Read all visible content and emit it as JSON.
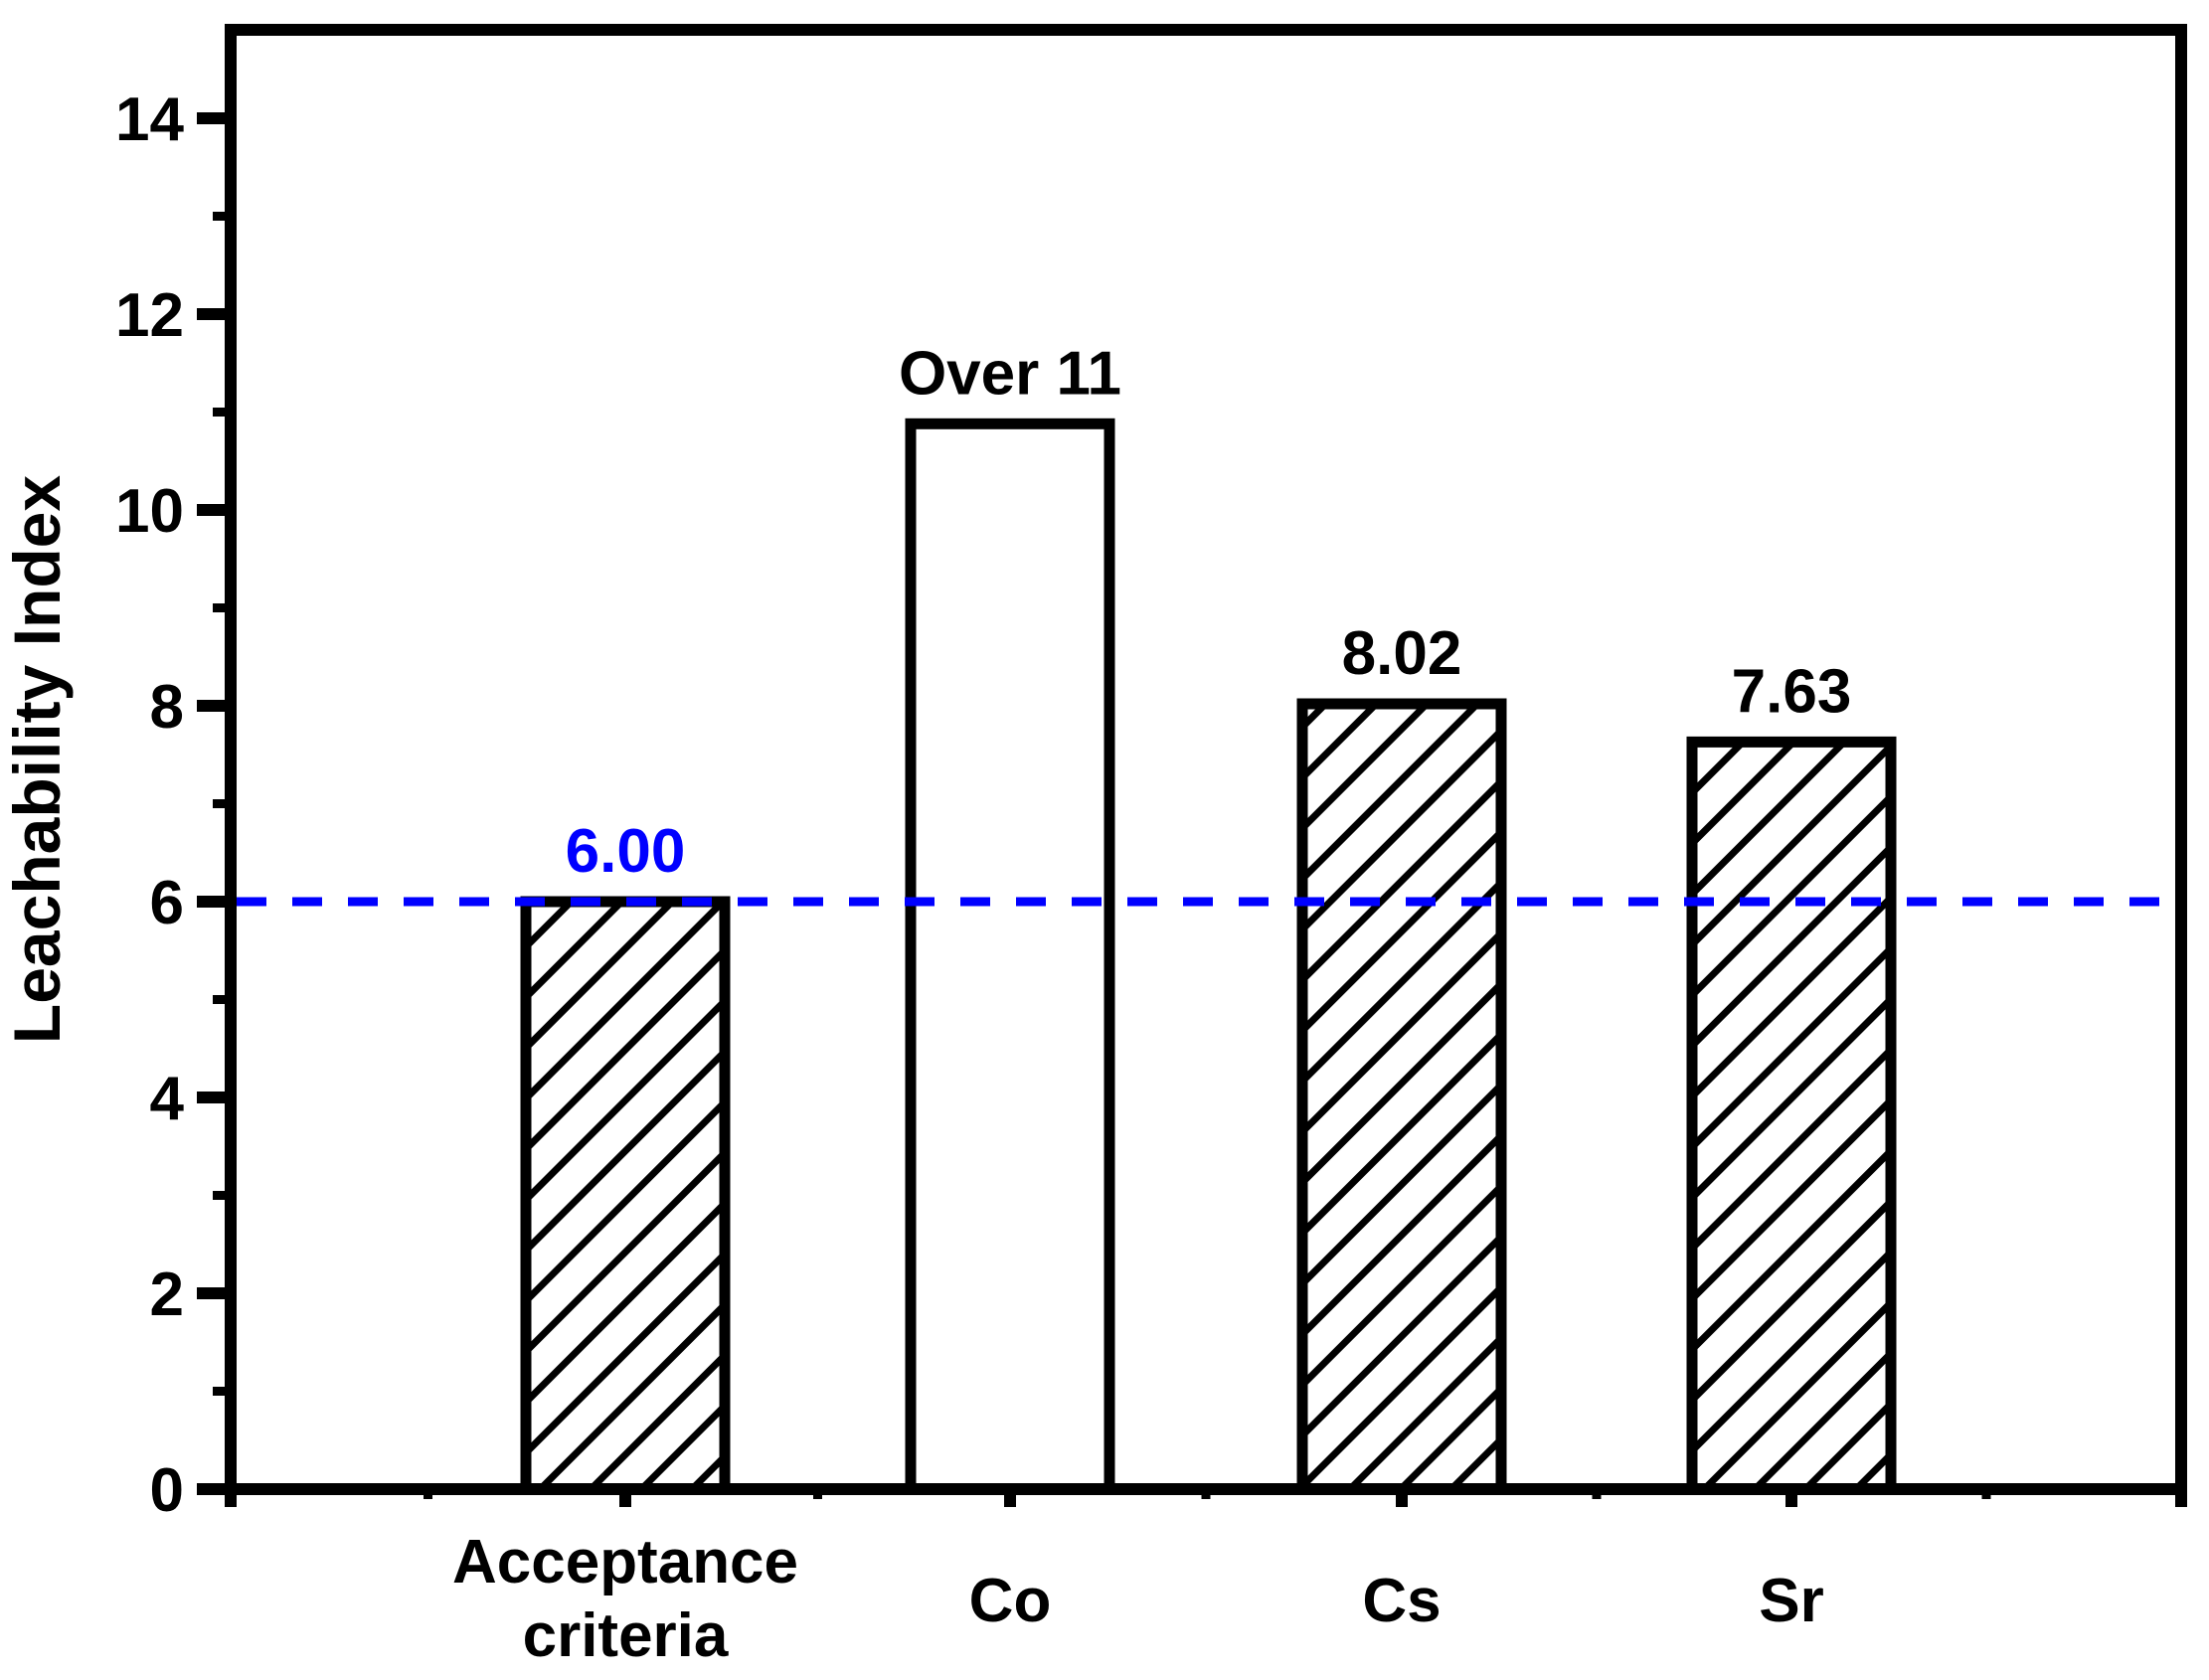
{
  "chart_data": {
    "type": "bar",
    "title": "",
    "xlabel": "",
    "ylabel": "Leachability Index",
    "ylim": [
      0,
      14.9
    ],
    "grid": false,
    "legend": false,
    "y_major_ticks": [
      0,
      2,
      4,
      6,
      8,
      10,
      12,
      14
    ],
    "y_major_tick_labels": [
      "0",
      "2",
      "4",
      "6",
      "8",
      "10",
      "12",
      "14"
    ],
    "y_minor_ticks": [
      1,
      3,
      5,
      7,
      9,
      11,
      13
    ],
    "categories": [
      "Acceptance criteria",
      "Co",
      "Cs",
      "Sr"
    ],
    "category_lines": [
      [
        "Acceptance",
        "criteria"
      ],
      [
        "Co"
      ],
      [
        "Cs"
      ],
      [
        "Sr"
      ]
    ],
    "values": [
      6.0,
      10.88,
      8.02,
      7.63
    ],
    "bar_labels": [
      "6.00",
      "Over 11",
      "8.02",
      "7.63"
    ],
    "bar_label_colors": [
      "#0000ff",
      "#000000",
      "#000000",
      "#000000"
    ],
    "bar_hatched": [
      true,
      false,
      true,
      true
    ],
    "bar_fill": "#ffffff",
    "bar_edge_color": "#000000",
    "hatch_color": "#000000",
    "axis_color": "#000000",
    "reference_line": {
      "value": 6.0,
      "color": "#0000ff",
      "style": "dashed"
    }
  }
}
